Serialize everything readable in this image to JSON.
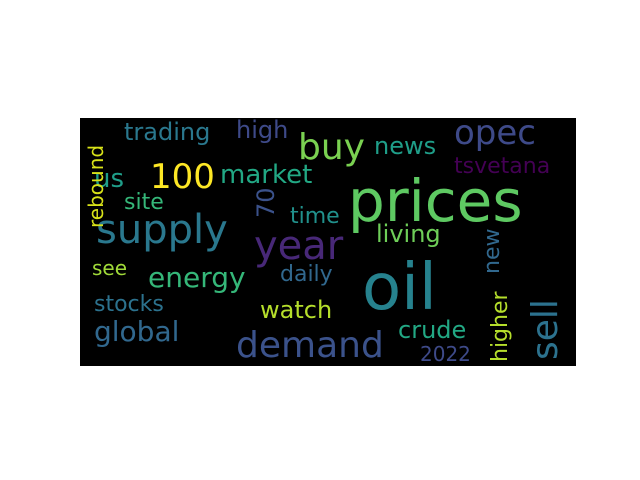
{
  "wordcloud": {
    "background": "#000000",
    "words": {
      "oil": "oil",
      "prices": "prices",
      "supply": "supply",
      "demand": "demand",
      "year": "year",
      "opec": "opec",
      "sell": "sell",
      "buy": "buy",
      "n100": "100",
      "energy": "energy",
      "global": "global",
      "market": "market",
      "trading": "trading",
      "high": "high",
      "news": "news",
      "us": "us",
      "tsvetana": "tsvetana",
      "site": "site",
      "n70": "70",
      "time": "time",
      "living": "living",
      "new": "new",
      "see": "see",
      "daily": "daily",
      "stocks": "stocks",
      "watch": "watch",
      "crude": "crude",
      "n2022": "2022",
      "higher": "higher",
      "rebound": "rebound"
    },
    "colors": {
      "oil": "#26828e",
      "prices": "#5ec962",
      "supply": "#2a788e",
      "demand": "#3b528b",
      "year": "#482878",
      "opec": "#3e4a89",
      "sell": "#2c728e",
      "buy": "#7ad151",
      "n100": "#fde725",
      "energy": "#35b779",
      "global": "#31688e",
      "market": "#22a884",
      "trading": "#2a788e",
      "high": "#3e4a89",
      "news": "#1f9e89",
      "us": "#1f9e89",
      "tsvetana": "#440154",
      "site": "#35b779",
      "n70": "#3b528b",
      "time": "#21918c",
      "living": "#6ece58",
      "new": "#31688e",
      "see": "#a0da39",
      "daily": "#31688e",
      "stocks": "#2c728e",
      "watch": "#b5de2b",
      "crude": "#22a884",
      "n2022": "#3e4a89",
      "higher": "#b5de2b",
      "rebound": "#d8e219"
    }
  }
}
